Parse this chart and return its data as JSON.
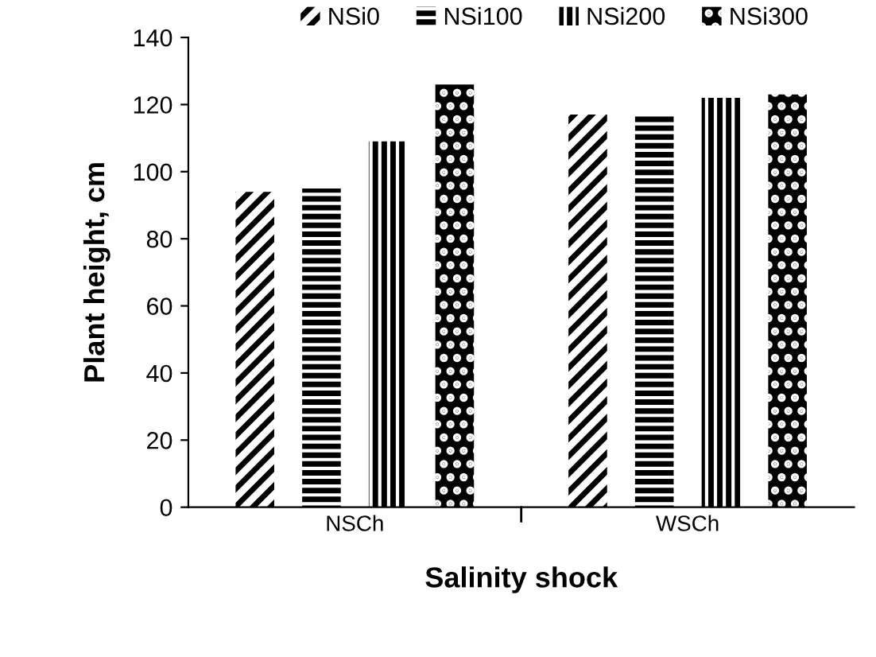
{
  "chart_data": {
    "type": "bar",
    "xlabel": "Salinity shock",
    "ylabel": "Plant height, cm",
    "categories": [
      "NSCh",
      "WSCh"
    ],
    "series": [
      {
        "name": "NSi0",
        "color": "#000000",
        "values": [
          94,
          117
        ]
      },
      {
        "name": "NSi100",
        "color": "#000000",
        "values": [
          95,
          117
        ]
      },
      {
        "name": "NSi200",
        "color": "#000000",
        "values": [
          109,
          122
        ]
      },
      {
        "name": "NSi300",
        "color": "#000000",
        "values": [
          126,
          123
        ]
      }
    ],
    "ylim": [
      0,
      140
    ],
    "yticks": [
      0,
      20,
      40,
      60,
      80,
      100,
      120,
      140
    ],
    "grid": false,
    "legend": "top"
  }
}
